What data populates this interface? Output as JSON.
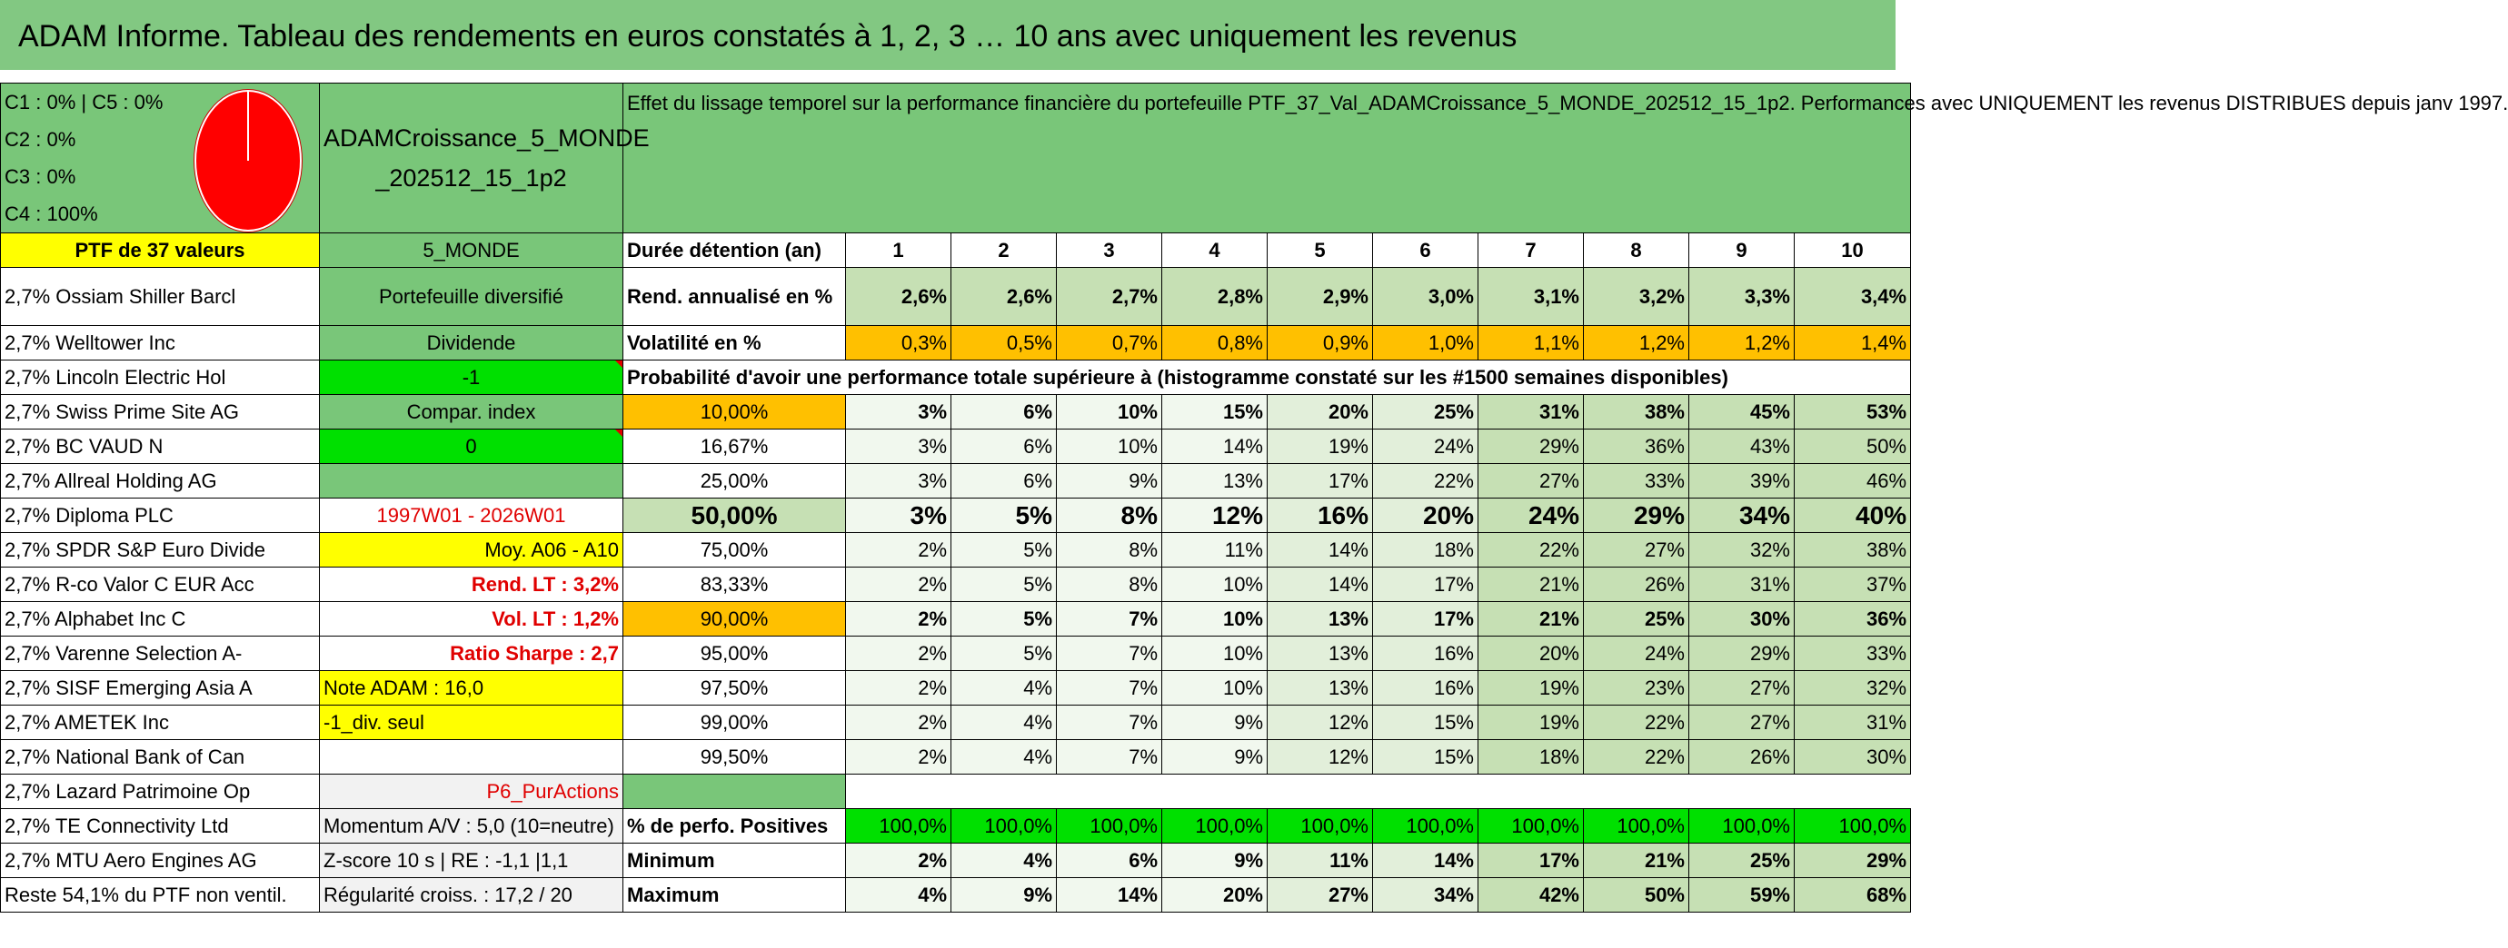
{
  "title": "ADAM Informe. Tableau des rendements en euros constatés à 1, 2, 3 … 10 ans avec uniquement les revenus",
  "pie_legend": [
    "C1 : 0% | C5 : 0%",
    "C2 : 0%",
    "C3 : 0%",
    "C4 : 100%"
  ],
  "portfolio_name": "ADAMCroissance_5_MONDE _202512_15_1p2",
  "description": "Effet du lissage temporel sur la performance financière du portefeuille PTF_37_Val_ADAMCroissance_5_MONDE_202512_15_1p2. Performances avec UNIQUEMENT les revenus DISTRIBUES depuis janv 1997.",
  "ptf_label": "PTF de 37 valeurs",
  "zone": "5_MONDE",
  "holdings": [
    "2,7% Ossiam Shiller Barcl",
    "2,7% Welltower Inc",
    "2,7% Lincoln Electric Hol",
    "2,7% Swiss Prime Site AG",
    "2,7% BC VAUD N",
    "2,7% Allreal Holding AG",
    "2,7% Diploma PLC",
    "2,7% SPDR S&P Euro Divide",
    "2,7% R-co Valor C EUR Acc",
    "2,7% Alphabet Inc C",
    "2,7% Varenne Selection A-",
    "2,7% SISF Emerging Asia A",
    "2,7% AMETEK Inc",
    "2,7% National Bank of Can",
    "2,7% Lazard Patrimoine Op",
    "2,7% TE Connectivity Ltd",
    "2,7% MTU Aero Engines AG",
    "Reste 54,1% du PTF non ventil."
  ],
  "side": {
    "type": "Portefeuille diversifié",
    "div": "Dividende",
    "minus1": "-1",
    "compar": "Compar. index",
    "zero": "0",
    "period": "1997W01 - 2026W01",
    "moy": "Moy. A06 - A10",
    "rend_lt": "Rend. LT : 3,2%",
    "vol_lt": "Vol. LT : 1,2%",
    "sharpe": "Ratio Sharpe : 2,7",
    "note": "Note ADAM : 16,0",
    "div_seul": "-1_div. seul",
    "p6": "P6_PurActions",
    "momentum": "Momentum A/V : 5,0 (10=neutre)",
    "zscore": "Z-score 10 s | RE : -1,1 |1,1",
    "regul": "Régularité croiss. : 17,2 / 20"
  },
  "duration_label": "Durée détention (an)",
  "years": [
    "1",
    "2",
    "3",
    "4",
    "5",
    "6",
    "7",
    "8",
    "9",
    "10"
  ],
  "rend_label": "Rend. annualisé en %",
  "rend": [
    "2,6%",
    "2,6%",
    "2,7%",
    "2,8%",
    "2,9%",
    "3,0%",
    "3,1%",
    "3,2%",
    "3,3%",
    "3,4%"
  ],
  "vol_label": "Volatilité en %",
  "vol": [
    "0,3%",
    "0,5%",
    "0,7%",
    "0,8%",
    "0,9%",
    "1,0%",
    "1,1%",
    "1,2%",
    "1,2%",
    "1,4%"
  ],
  "prob_label": "Probabilité d'avoir une performance totale supérieure à (histogramme constaté sur les #1500 semaines disponibles)",
  "prob_rows": [
    {
      "q": "10,00%",
      "v": [
        "3%",
        "6%",
        "10%",
        "15%",
        "20%",
        "25%",
        "31%",
        "38%",
        "45%",
        "53%"
      ]
    },
    {
      "q": "16,67%",
      "v": [
        "3%",
        "6%",
        "10%",
        "14%",
        "19%",
        "24%",
        "29%",
        "36%",
        "43%",
        "50%"
      ]
    },
    {
      "q": "25,00%",
      "v": [
        "3%",
        "6%",
        "9%",
        "13%",
        "17%",
        "22%",
        "27%",
        "33%",
        "39%",
        "46%"
      ]
    },
    {
      "q": "50,00%",
      "v": [
        "3%",
        "5%",
        "8%",
        "12%",
        "16%",
        "20%",
        "24%",
        "29%",
        "34%",
        "40%"
      ]
    },
    {
      "q": "75,00%",
      "v": [
        "2%",
        "5%",
        "8%",
        "11%",
        "14%",
        "18%",
        "22%",
        "27%",
        "32%",
        "38%"
      ]
    },
    {
      "q": "83,33%",
      "v": [
        "2%",
        "5%",
        "8%",
        "10%",
        "14%",
        "17%",
        "21%",
        "26%",
        "31%",
        "37%"
      ]
    },
    {
      "q": "90,00%",
      "v": [
        "2%",
        "5%",
        "7%",
        "10%",
        "13%",
        "17%",
        "21%",
        "25%",
        "30%",
        "36%"
      ]
    },
    {
      "q": "95,00%",
      "v": [
        "2%",
        "5%",
        "7%",
        "10%",
        "13%",
        "16%",
        "20%",
        "24%",
        "29%",
        "33%"
      ]
    },
    {
      "q": "97,50%",
      "v": [
        "2%",
        "4%",
        "7%",
        "10%",
        "13%",
        "16%",
        "19%",
        "23%",
        "27%",
        "32%"
      ]
    },
    {
      "q": "99,00%",
      "v": [
        "2%",
        "4%",
        "7%",
        "9%",
        "12%",
        "15%",
        "19%",
        "22%",
        "27%",
        "31%"
      ]
    },
    {
      "q": "99,50%",
      "v": [
        "2%",
        "4%",
        "7%",
        "9%",
        "12%",
        "15%",
        "18%",
        "22%",
        "26%",
        "30%"
      ]
    }
  ],
  "pos_label": "% de perfo. Positives",
  "pos": [
    "100,0%",
    "100,0%",
    "100,0%",
    "100,0%",
    "100,0%",
    "100,0%",
    "100,0%",
    "100,0%",
    "100,0%",
    "100,0%"
  ],
  "min_label": "Minimum",
  "min": [
    "2%",
    "4%",
    "6%",
    "9%",
    "11%",
    "14%",
    "17%",
    "21%",
    "25%",
    "29%"
  ],
  "max_label": "Maximum",
  "max": [
    "4%",
    "9%",
    "14%",
    "20%",
    "27%",
    "34%",
    "42%",
    "50%",
    "59%",
    "68%"
  ],
  "colors": {
    "header_green": "#82c882",
    "yellow": "#ffff00",
    "orange": "#ffc000",
    "bright_green": "#00e000",
    "red": "#ff0000"
  }
}
